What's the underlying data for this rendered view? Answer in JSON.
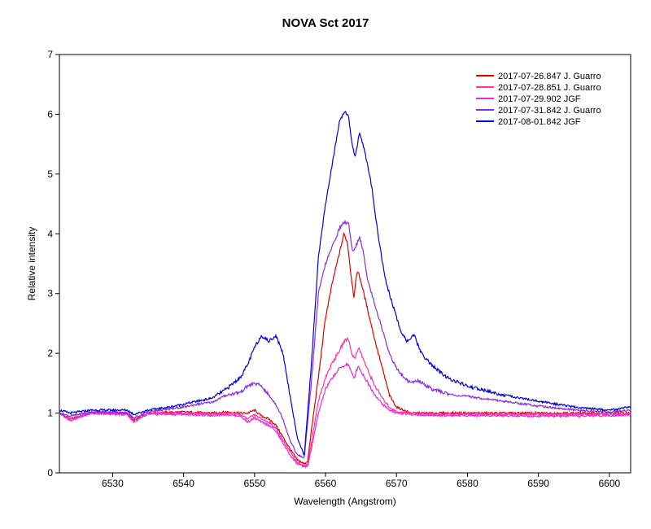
{
  "chart_data": {
    "type": "line",
    "title": "NOVA Sct 2017",
    "xlabel": "Wavelength (Angstrom)",
    "ylabel": "Relative intensity",
    "xlim": [
      6522.5,
      6603
    ],
    "ylim": [
      0,
      7
    ],
    "xticks": [
      6530,
      6540,
      6550,
      6560,
      6570,
      6580,
      6590,
      6600
    ],
    "yticks": [
      0,
      1,
      2,
      3,
      4,
      5,
      6,
      7
    ],
    "grid": false,
    "legend_position": "top-right",
    "series": [
      {
        "name": "2017-07-26.847  J. Guarro",
        "color": "#e00000",
        "x": [
          6522.5,
          6524,
          6527,
          6530,
          6532,
          6533,
          6535,
          6540,
          6544,
          6546,
          6548,
          6549,
          6550,
          6551,
          6552,
          6553,
          6554,
          6555,
          6556,
          6557,
          6557.5,
          6558,
          6559,
          6560,
          6561,
          6562,
          6562.6,
          6563.1,
          6563.6,
          6564,
          6564.5,
          6565,
          6566,
          6567,
          6568,
          6569,
          6570,
          6571,
          6572,
          6575,
          6580,
          6585,
          6590,
          6595,
          6600,
          6603
        ],
        "y": [
          1.0,
          0.9,
          1.0,
          1.0,
          1.0,
          0.88,
          1.0,
          1.02,
          1.0,
          1.02,
          1.0,
          1.0,
          1.05,
          0.95,
          0.9,
          0.8,
          0.6,
          0.4,
          0.22,
          0.15,
          0.2,
          0.7,
          1.6,
          2.6,
          3.2,
          3.7,
          4.0,
          3.85,
          3.3,
          2.95,
          3.4,
          3.2,
          2.7,
          2.2,
          1.75,
          1.3,
          1.1,
          1.05,
          1.0,
          1.0,
          1.0,
          1.0,
          1.0,
          1.0,
          1.0,
          1.0
        ]
      },
      {
        "name": "2017-07-28.851  J. Guarro",
        "color": "#ff3399",
        "x": [
          6522.5,
          6524,
          6527,
          6530,
          6532,
          6533,
          6535,
          6540,
          6544,
          6546,
          6548,
          6549,
          6550,
          6551,
          6552,
          6553,
          6554,
          6555,
          6556,
          6557,
          6557.5,
          6558,
          6559,
          6560,
          6561,
          6562,
          6562.6,
          6563.2,
          6563.7,
          6564.1,
          6564.6,
          6565,
          6566,
          6567,
          6568,
          6569,
          6570,
          6572,
          6575,
          6580,
          6585,
          6590,
          6595,
          6600,
          6603
        ],
        "y": [
          1.0,
          0.9,
          1.0,
          1.0,
          1.0,
          0.87,
          1.0,
          1.0,
          0.98,
          1.0,
          0.98,
          0.9,
          0.97,
          0.9,
          0.85,
          0.75,
          0.55,
          0.35,
          0.18,
          0.12,
          0.15,
          0.5,
          1.2,
          1.6,
          1.85,
          2.05,
          2.2,
          2.25,
          2.0,
          1.9,
          2.1,
          2.0,
          1.7,
          1.45,
          1.25,
          1.1,
          1.02,
          1.0,
          0.98,
          0.98,
          0.98,
          0.98,
          0.98,
          0.98,
          0.98
        ]
      },
      {
        "name": "2017-07-29.902  JGF",
        "color": "#ee22ee",
        "x": [
          6522.5,
          6524,
          6527,
          6530,
          6532,
          6533,
          6535,
          6540,
          6544,
          6546,
          6548,
          6549,
          6550,
          6551,
          6552,
          6553,
          6554,
          6555,
          6556,
          6557,
          6557.5,
          6558,
          6559,
          6560,
          6561,
          6562,
          6562.7,
          6563.2,
          6563.7,
          6564.1,
          6564.6,
          6565,
          6566,
          6567,
          6568,
          6569,
          6570,
          6572,
          6575,
          6580,
          6585,
          6590,
          6595,
          6600,
          6603
        ],
        "y": [
          1.0,
          0.88,
          1.0,
          0.98,
          0.98,
          0.85,
          0.98,
          0.98,
          0.96,
          0.98,
          0.95,
          0.85,
          0.92,
          0.85,
          0.8,
          0.7,
          0.5,
          0.3,
          0.15,
          0.1,
          0.12,
          0.4,
          1.0,
          1.4,
          1.6,
          1.75,
          1.8,
          1.82,
          1.65,
          1.6,
          1.8,
          1.7,
          1.5,
          1.3,
          1.15,
          1.05,
          1.0,
          0.98,
          0.96,
          0.96,
          0.96,
          0.95,
          0.95,
          0.96,
          0.97
        ]
      },
      {
        "name": "2017-07-31.842  J. Guarro",
        "color": "#8a2be2",
        "x": [
          6522.5,
          6524,
          6527,
          6530,
          6532,
          6533,
          6535,
          6540,
          6542,
          6544,
          6546,
          6548,
          6549,
          6550,
          6551,
          6552,
          6553,
          6554,
          6555,
          6556,
          6557,
          6558,
          6559,
          6560,
          6561,
          6562,
          6562.7,
          6563.3,
          6563.8,
          6564.3,
          6564.8,
          6565.3,
          6566,
          6567,
          6568,
          6569,
          6570,
          6571,
          6572,
          6573,
          6575,
          6578,
          6580,
          6585,
          6590,
          6595,
          6600,
          6603
        ],
        "y": [
          1.0,
          0.95,
          1.02,
          1.02,
          1.0,
          0.92,
          1.02,
          1.1,
          1.15,
          1.18,
          1.3,
          1.35,
          1.45,
          1.5,
          1.45,
          1.3,
          1.15,
          0.9,
          0.55,
          0.3,
          0.25,
          1.5,
          3.0,
          3.5,
          3.8,
          4.1,
          4.2,
          4.15,
          3.7,
          3.8,
          3.95,
          3.7,
          3.2,
          2.8,
          2.4,
          2.0,
          1.75,
          1.6,
          1.5,
          1.55,
          1.4,
          1.3,
          1.28,
          1.2,
          1.12,
          1.05,
          1.02,
          1.05
        ]
      },
      {
        "name": "2017-08-01.842  JGF",
        "color": "#0000dd",
        "x": [
          6522.5,
          6524,
          6527,
          6530,
          6532,
          6533,
          6535,
          6538,
          6540,
          6542,
          6544,
          6546,
          6548,
          6549,
          6550,
          6551,
          6552,
          6553,
          6554,
          6555,
          6556,
          6557,
          6558,
          6559,
          6560,
          6561,
          6562,
          6562.7,
          6563.2,
          6563.7,
          6564.2,
          6564.8,
          6565.5,
          6566.5,
          6567.5,
          6568.5,
          6569.5,
          6570.5,
          6571.5,
          6572.5,
          6573.5,
          6575,
          6577,
          6580,
          6585,
          6590,
          6595,
          6600,
          6603
        ],
        "y": [
          1.05,
          1.0,
          1.05,
          1.05,
          1.05,
          0.98,
          1.05,
          1.1,
          1.15,
          1.2,
          1.25,
          1.4,
          1.6,
          1.8,
          2.1,
          2.3,
          2.2,
          2.3,
          2.0,
          1.3,
          0.6,
          0.28,
          1.8,
          3.6,
          4.5,
          5.2,
          5.9,
          6.05,
          6.0,
          5.5,
          5.3,
          5.7,
          5.4,
          4.8,
          3.9,
          3.2,
          2.8,
          2.4,
          2.2,
          2.3,
          2.0,
          1.8,
          1.6,
          1.45,
          1.3,
          1.2,
          1.1,
          1.05,
          1.1
        ]
      }
    ]
  }
}
